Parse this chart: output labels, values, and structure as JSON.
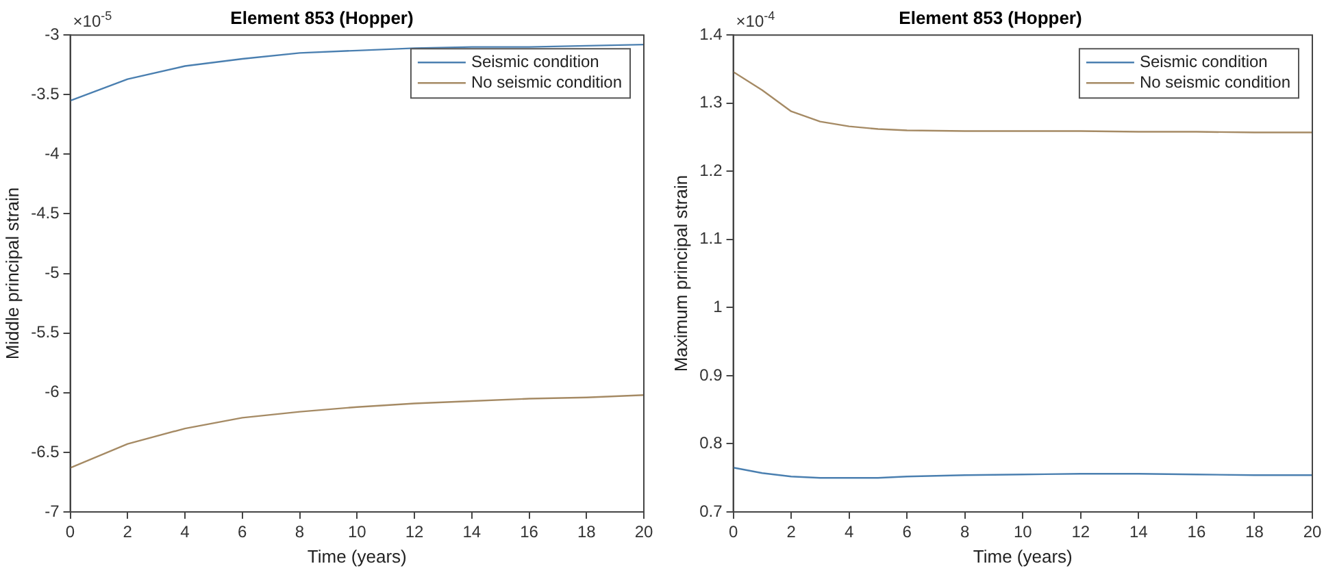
{
  "chart_data": [
    {
      "type": "line",
      "title": "Element 853 (Hopper)",
      "xlabel": "Time (years)",
      "ylabel": "Middle principal strain",
      "annotations": [
        "×10$^{-5}$"
      ],
      "legend": "top right",
      "grid": false,
      "marker": "none",
      "line_style": "solid",
      "xlim": [
        0,
        20
      ],
      "xticks": [
        0,
        2,
        4,
        6,
        8,
        10,
        12,
        14,
        16,
        18,
        20
      ],
      "ylim": [
        -7,
        -3
      ],
      "yticks": [
        -7,
        -6.5,
        -6,
        -5.5,
        -5,
        -4.5,
        -4,
        -3.5,
        -3
      ],
      "x": [
        0,
        2,
        4,
        6,
        8,
        10,
        12,
        14,
        16,
        18,
        20
      ],
      "series": [
        {
          "name": "Seismic condition",
          "color": "#4a7fb0",
          "values": [
            -3.55,
            -3.37,
            -3.26,
            -3.2,
            -3.15,
            -3.13,
            -3.11,
            -3.1,
            -3.1,
            -3.09,
            -3.08
          ]
        },
        {
          "name": "No seismic condition",
          "color": "#a58a64",
          "values": [
            -6.63,
            -6.43,
            -6.3,
            -6.21,
            -6.16,
            -6.12,
            -6.09,
            -6.07,
            -6.05,
            -6.04,
            -6.02
          ]
        }
      ]
    },
    {
      "type": "line",
      "title": "Element 853 (Hopper)",
      "xlabel": "Time (years)",
      "ylabel": "Maximum principal strain",
      "annotations": [
        "×10$^{-4}$"
      ],
      "legend": "top right",
      "grid": false,
      "marker": "none",
      "line_style": "solid",
      "xlim": [
        0,
        20
      ],
      "xticks": [
        0,
        2,
        4,
        6,
        8,
        10,
        12,
        14,
        16,
        18,
        20
      ],
      "ylim": [
        0.7,
        1.4
      ],
      "yticks": [
        0.7,
        0.8,
        0.9,
        1,
        1.1,
        1.2,
        1.3,
        1.4
      ],
      "x": [
        0,
        1,
        2,
        3,
        4,
        5,
        6,
        8,
        10,
        12,
        14,
        16,
        18,
        20
      ],
      "series": [
        {
          "name": "Seismic condition",
          "color": "#4a7fb0",
          "values": [
            0.765,
            0.757,
            0.752,
            0.75,
            0.75,
            0.75,
            0.752,
            0.754,
            0.755,
            0.756,
            0.756,
            0.755,
            0.754,
            0.754
          ]
        },
        {
          "name": "No seismic condition",
          "color": "#a58a64",
          "values": [
            1.346,
            1.319,
            1.288,
            1.273,
            1.266,
            1.262,
            1.26,
            1.259,
            1.259,
            1.259,
            1.258,
            1.258,
            1.257,
            1.257
          ]
        }
      ]
    }
  ]
}
